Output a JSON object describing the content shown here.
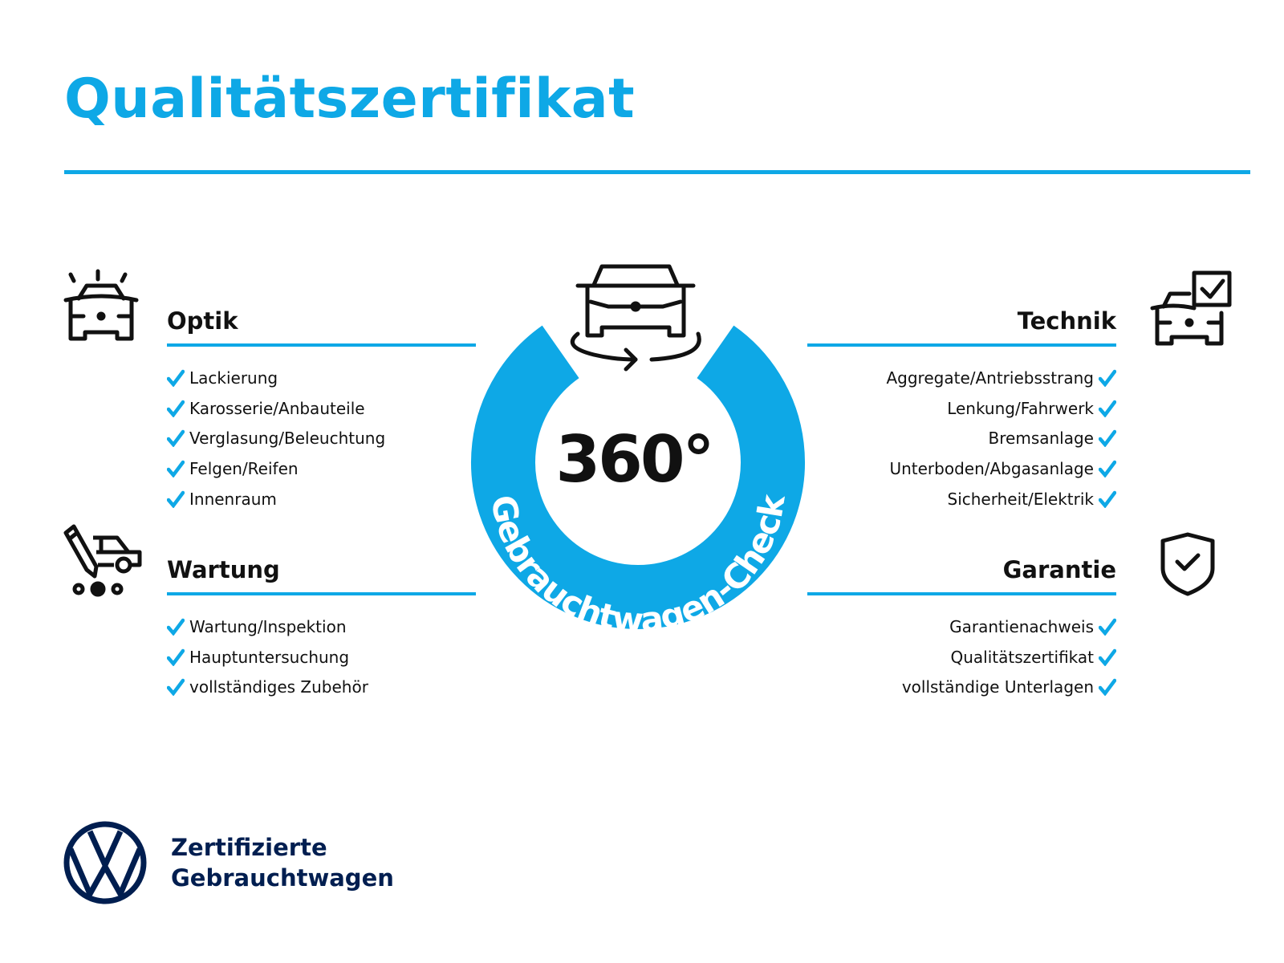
{
  "title": "Qualitätszertifikat",
  "colors": {
    "accent": "#0ea8e6",
    "brand_navy": "#001e50",
    "text": "#111111"
  },
  "sections": {
    "optik": {
      "heading": "Optik",
      "icon": "car-lights-icon",
      "items": [
        "Lackierung",
        "Karosserie/Anbauteile",
        "Verglasung/Beleuchtung",
        "Felgen/Reifen",
        "Innenraum"
      ]
    },
    "wartung": {
      "heading": "Wartung",
      "icon": "van-service-icon",
      "items": [
        "Wartung/Inspektion",
        "Hauptuntersuchung",
        "vollständiges Zubehör"
      ]
    },
    "technik": {
      "heading": "Technik",
      "icon": "car-checkbox-icon",
      "items": [
        "Aggregate/Antriebsstrang",
        "Lenkung/Fahrwerk",
        "Bremsanlage",
        "Unterboden/Abgasanlage",
        "Sicherheit/Elektrik"
      ]
    },
    "garantie": {
      "heading": "Garantie",
      "icon": "shield-check-icon",
      "items": [
        "Garantienachweis",
        "Qualitätszertifikat",
        "vollständige Unterlagen"
      ]
    }
  },
  "badge": {
    "degrees": "360°",
    "arc_text": "Gebrauchtwagen-Check",
    "icon": "car-rotate-icon"
  },
  "footer": {
    "line1": "Zertifizierte",
    "line2": "Gebrauchtwagen",
    "logo": "vw-logo"
  }
}
